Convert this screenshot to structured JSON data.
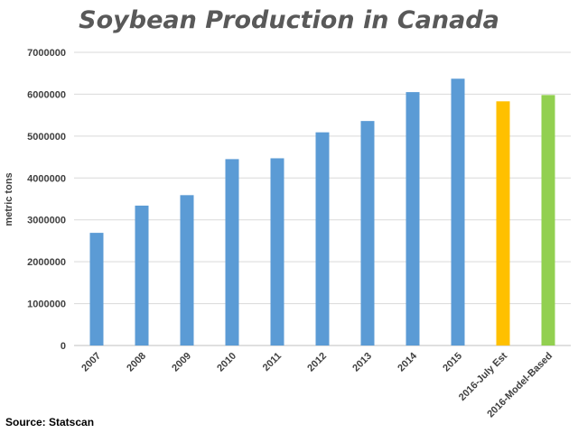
{
  "chart_data": {
    "type": "bar",
    "title": "Soybean Production in Canada",
    "ylabel": "metric tons",
    "xlabel": "",
    "categories": [
      "2007",
      "2008",
      "2009",
      "2010",
      "2011",
      "2012",
      "2013",
      "2014",
      "2015",
      "2016-July Est",
      "2016-Model-Based"
    ],
    "values": [
      2690000,
      3340000,
      3590000,
      4450000,
      4470000,
      5090000,
      5360000,
      6050000,
      6370000,
      5830000,
      5980000
    ],
    "bar_colors": [
      "#5b9bd5",
      "#5b9bd5",
      "#5b9bd5",
      "#5b9bd5",
      "#5b9bd5",
      "#5b9bd5",
      "#5b9bd5",
      "#5b9bd5",
      "#5b9bd5",
      "#ffc000",
      "#92d050"
    ],
    "ylim": [
      0,
      7000000
    ],
    "yticks": [
      0,
      1000000,
      2000000,
      3000000,
      4000000,
      5000000,
      6000000,
      7000000
    ],
    "ytick_labels": [
      "0",
      "1000000",
      "2000000",
      "3000000",
      "4000000",
      "5000000",
      "6000000",
      "7000000"
    ],
    "grid": true,
    "legend": "none"
  },
  "source_text": "Source: Statscan"
}
